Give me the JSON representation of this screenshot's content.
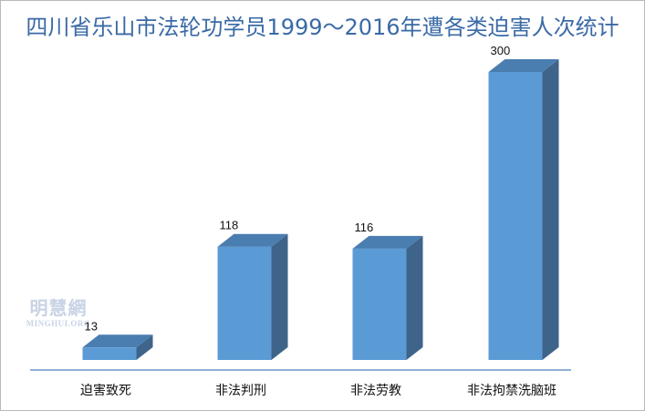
{
  "chart_data": {
    "type": "bar",
    "title": "四川省乐山市法轮功学员1999～2016年遭各类迫害人次统计",
    "categories": [
      "迫害致死",
      "非法判刑",
      "非法劳教",
      "非法拘禁洗脑班"
    ],
    "values": [
      13,
      118,
      116,
      300
    ],
    "ylim": [
      0,
      300
    ],
    "grid": false,
    "legend": "none",
    "colors": {
      "front": "#5b9bd5",
      "top": "#4a7db0",
      "side": "#3f6489",
      "axis": "#4f81bd",
      "title": "#3a6aa6"
    }
  },
  "watermark": {
    "cn": "明慧網",
    "en": "MINGHUI.ORG"
  }
}
